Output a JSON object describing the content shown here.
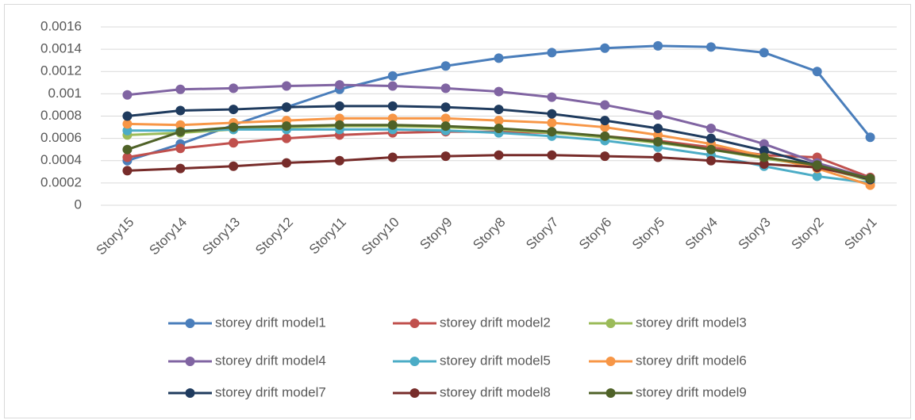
{
  "chart_data": {
    "type": "line",
    "categories": [
      "Story15",
      "Story14",
      "Story13",
      "Story12",
      "Story11",
      "Story10",
      "Story9",
      "Story8",
      "Story7",
      "Story6",
      "Story5",
      "Story4",
      "Story3",
      "Story2",
      "Story1"
    ],
    "series": [
      {
        "name": "storey drift model1",
        "color": "#4a7ebb",
        "values": [
          0.0004,
          0.00055,
          0.00072,
          0.00088,
          0.00104,
          0.00116,
          0.00125,
          0.00132,
          0.00137,
          0.00141,
          0.00143,
          0.00142,
          0.00137,
          0.0012,
          0.00061
        ]
      },
      {
        "name": "storey drift model2",
        "color": "#c0504d",
        "values": [
          0.00043,
          0.00051,
          0.00056,
          0.0006,
          0.00063,
          0.00065,
          0.00066,
          0.00066,
          0.00065,
          0.00062,
          0.00058,
          0.00052,
          0.00045,
          0.00043,
          0.00025
        ]
      },
      {
        "name": "storey drift model3",
        "color": "#9bbb59",
        "values": [
          0.00063,
          0.00065,
          0.00068,
          0.0007,
          0.00071,
          0.00071,
          0.0007,
          0.00068,
          0.00065,
          0.00061,
          0.00056,
          0.0005,
          0.00042,
          0.00035,
          0.00022
        ]
      },
      {
        "name": "storey drift model4",
        "color": "#8064a2",
        "values": [
          0.00099,
          0.00104,
          0.00105,
          0.00107,
          0.00108,
          0.00107,
          0.00105,
          0.00102,
          0.00097,
          0.0009,
          0.00081,
          0.00069,
          0.00055,
          0.00038,
          0.00024
        ]
      },
      {
        "name": "storey drift model5",
        "color": "#4bacc6",
        "values": [
          0.00067,
          0.00067,
          0.00068,
          0.00068,
          0.00068,
          0.00068,
          0.00067,
          0.00065,
          0.00062,
          0.00058,
          0.00052,
          0.00045,
          0.00035,
          0.00026,
          0.0002
        ]
      },
      {
        "name": "storey drift model6",
        "color": "#f79646",
        "values": [
          0.00073,
          0.00072,
          0.00074,
          0.00076,
          0.00078,
          0.00078,
          0.00078,
          0.00076,
          0.00074,
          0.0007,
          0.00063,
          0.00055,
          0.00044,
          0.00033,
          0.00018
        ]
      },
      {
        "name": "storey drift model7",
        "color": "#1f3b5e",
        "values": [
          0.0008,
          0.00085,
          0.00086,
          0.00088,
          0.00089,
          0.00089,
          0.00088,
          0.00086,
          0.00082,
          0.00076,
          0.00069,
          0.0006,
          0.00049,
          0.00036,
          0.00023
        ]
      },
      {
        "name": "storey drift model8",
        "color": "#772c2a",
        "values": [
          0.00031,
          0.00033,
          0.00035,
          0.00038,
          0.0004,
          0.00043,
          0.00044,
          0.00045,
          0.00045,
          0.00044,
          0.00043,
          0.0004,
          0.00037,
          0.00034,
          0.00024
        ]
      },
      {
        "name": "storey drift model9",
        "color": "#4f6228",
        "values": [
          0.0005,
          0.00066,
          0.0007,
          0.00071,
          0.00072,
          0.00072,
          0.00071,
          0.00069,
          0.00066,
          0.00062,
          0.00057,
          0.0005,
          0.00043,
          0.00036,
          0.00024
        ]
      }
    ],
    "ylim": [
      0,
      0.0016
    ],
    "yticks": [
      0,
      0.0002,
      0.0004,
      0.0006,
      0.0008,
      0.001,
      0.0012,
      0.0014,
      0.0016
    ],
    "grid": true,
    "legend": "bottom"
  }
}
